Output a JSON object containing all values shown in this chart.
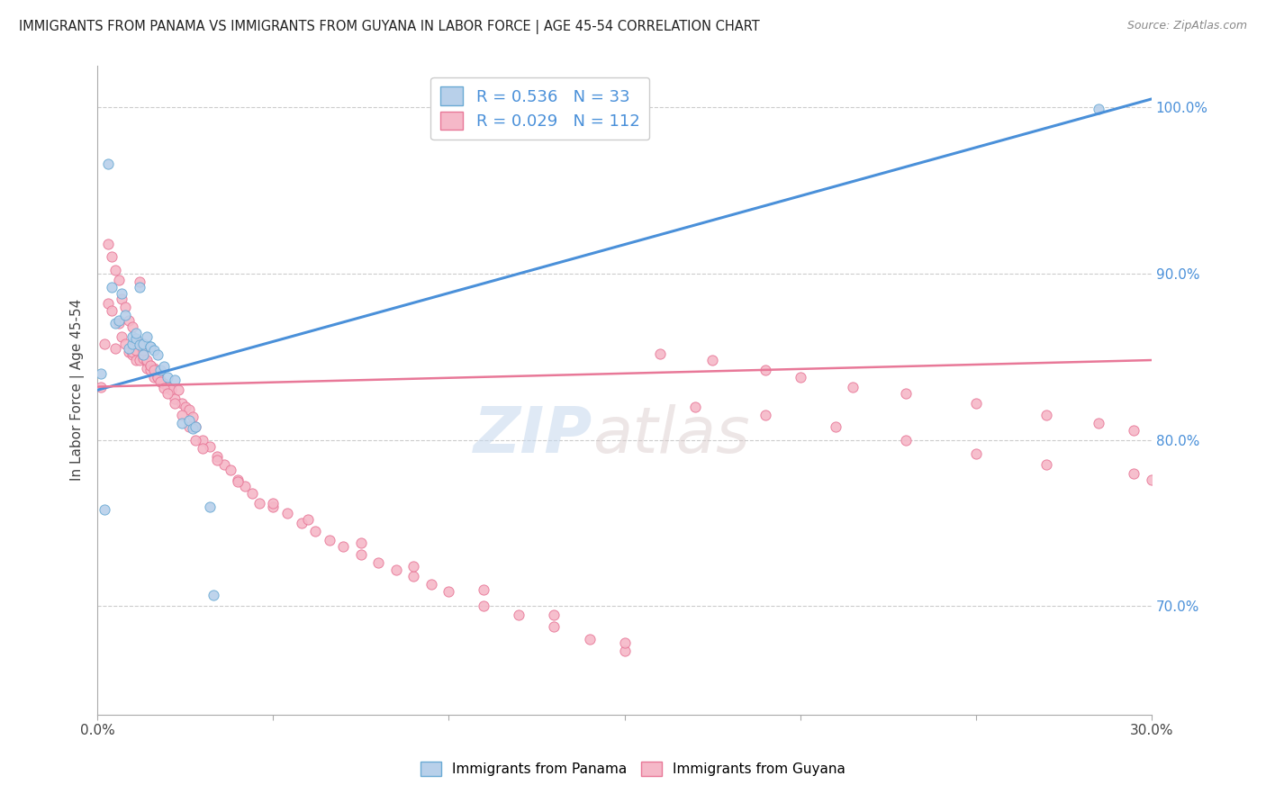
{
  "title": "IMMIGRANTS FROM PANAMA VS IMMIGRANTS FROM GUYANA IN LABOR FORCE | AGE 45-54 CORRELATION CHART",
  "source": "Source: ZipAtlas.com",
  "ylabel": "In Labor Force | Age 45-54",
  "right_yticks": [
    0.7,
    0.8,
    0.9,
    1.0
  ],
  "right_yticklabels": [
    "70.0%",
    "80.0%",
    "90.0%",
    "100.0%"
  ],
  "xmin": 0.0,
  "xmax": 0.3,
  "ymin": 0.635,
  "ymax": 1.025,
  "watermark_zip": "ZIP",
  "watermark_atlas": "atlas",
  "legend_r_panama": "0.536",
  "legend_n_panama": "33",
  "legend_r_guyana": "0.029",
  "legend_n_guyana": "112",
  "color_panama_fill": "#b8d0ea",
  "color_guyana_fill": "#f5b8c8",
  "color_panama_edge": "#6aaad4",
  "color_guyana_edge": "#e87898",
  "color_panama_line": "#4a90d9",
  "color_guyana_line": "#e87898",
  "panama_x": [
    0.001,
    0.002,
    0.003,
    0.004,
    0.005,
    0.006,
    0.007,
    0.008,
    0.009,
    0.01,
    0.01,
    0.011,
    0.011,
    0.012,
    0.012,
    0.013,
    0.013,
    0.014,
    0.015,
    0.015,
    0.016,
    0.017,
    0.018,
    0.019,
    0.02,
    0.022,
    0.024,
    0.026,
    0.027,
    0.028,
    0.032,
    0.033,
    0.285
  ],
  "panama_y": [
    0.84,
    0.758,
    0.966,
    0.892,
    0.87,
    0.872,
    0.888,
    0.875,
    0.855,
    0.858,
    0.862,
    0.861,
    0.864,
    0.857,
    0.892,
    0.851,
    0.858,
    0.862,
    0.856,
    0.856,
    0.854,
    0.851,
    0.842,
    0.844,
    0.838,
    0.836,
    0.81,
    0.812,
    0.807,
    0.808,
    0.76,
    0.707,
    0.999
  ],
  "guyana_x": [
    0.001,
    0.002,
    0.003,
    0.004,
    0.005,
    0.006,
    0.007,
    0.008,
    0.009,
    0.01,
    0.01,
    0.011,
    0.011,
    0.012,
    0.012,
    0.013,
    0.013,
    0.014,
    0.014,
    0.015,
    0.015,
    0.016,
    0.016,
    0.017,
    0.017,
    0.018,
    0.019,
    0.02,
    0.021,
    0.022,
    0.023,
    0.024,
    0.025,
    0.026,
    0.027,
    0.028,
    0.03,
    0.032,
    0.034,
    0.036,
    0.038,
    0.04,
    0.042,
    0.044,
    0.046,
    0.05,
    0.054,
    0.058,
    0.062,
    0.066,
    0.07,
    0.075,
    0.08,
    0.085,
    0.09,
    0.095,
    0.1,
    0.11,
    0.12,
    0.13,
    0.14,
    0.15,
    0.003,
    0.004,
    0.005,
    0.006,
    0.007,
    0.008,
    0.009,
    0.01,
    0.011,
    0.012,
    0.013,
    0.014,
    0.015,
    0.016,
    0.017,
    0.018,
    0.019,
    0.02,
    0.022,
    0.024,
    0.026,
    0.028,
    0.03,
    0.034,
    0.04,
    0.05,
    0.06,
    0.075,
    0.09,
    0.11,
    0.13,
    0.15,
    0.17,
    0.19,
    0.21,
    0.23,
    0.25,
    0.27,
    0.16,
    0.175,
    0.19,
    0.2,
    0.215,
    0.23,
    0.25,
    0.27,
    0.285,
    0.295,
    0.295,
    0.3
  ],
  "guyana_y": [
    0.832,
    0.858,
    0.882,
    0.878,
    0.855,
    0.87,
    0.862,
    0.858,
    0.853,
    0.851,
    0.853,
    0.854,
    0.848,
    0.848,
    0.895,
    0.849,
    0.851,
    0.847,
    0.843,
    0.845,
    0.842,
    0.843,
    0.838,
    0.838,
    0.84,
    0.836,
    0.834,
    0.832,
    0.83,
    0.825,
    0.83,
    0.822,
    0.82,
    0.818,
    0.814,
    0.808,
    0.8,
    0.796,
    0.79,
    0.785,
    0.782,
    0.776,
    0.772,
    0.768,
    0.762,
    0.76,
    0.756,
    0.75,
    0.745,
    0.74,
    0.736,
    0.731,
    0.726,
    0.722,
    0.718,
    0.713,
    0.709,
    0.7,
    0.695,
    0.688,
    0.68,
    0.673,
    0.918,
    0.91,
    0.902,
    0.896,
    0.885,
    0.88,
    0.872,
    0.868,
    0.86,
    0.858,
    0.854,
    0.848,
    0.845,
    0.842,
    0.838,
    0.835,
    0.831,
    0.828,
    0.822,
    0.815,
    0.808,
    0.8,
    0.795,
    0.788,
    0.775,
    0.762,
    0.752,
    0.738,
    0.724,
    0.71,
    0.695,
    0.678,
    0.82,
    0.815,
    0.808,
    0.8,
    0.792,
    0.785,
    0.852,
    0.848,
    0.842,
    0.838,
    0.832,
    0.828,
    0.822,
    0.815,
    0.81,
    0.806,
    0.78,
    0.776
  ],
  "panama_line_x0": 0.0,
  "panama_line_y0": 0.83,
  "panama_line_x1": 0.3,
  "panama_line_y1": 1.005,
  "guyana_line_x0": 0.0,
  "guyana_line_y0": 0.832,
  "guyana_line_x1": 0.3,
  "guyana_line_y1": 0.848
}
